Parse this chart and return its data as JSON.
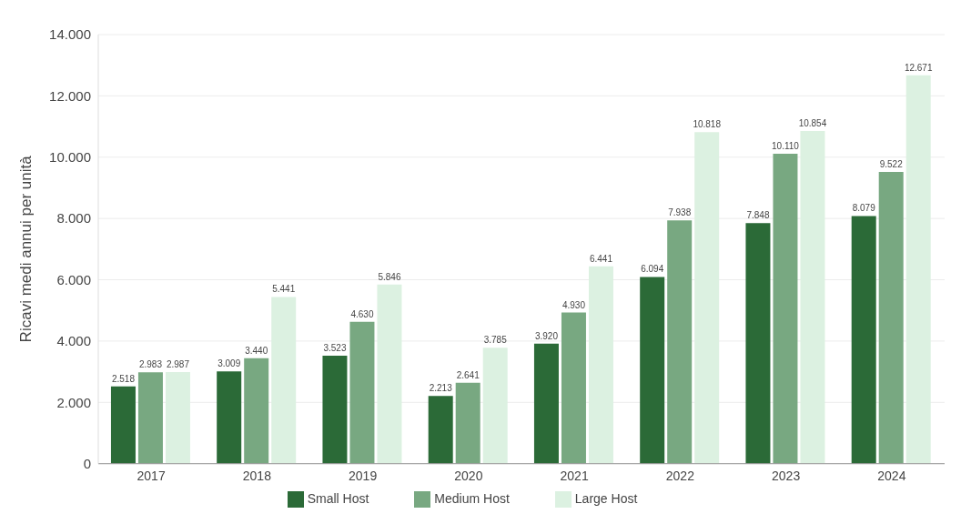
{
  "chart_data": {
    "type": "bar",
    "ylabel": "Ricavi medi annui per unità",
    "categories": [
      "2017",
      "2018",
      "2019",
      "2020",
      "2021",
      "2022",
      "2023",
      "2024"
    ],
    "series": [
      {
        "name": "Small Host",
        "color": "#2b6a37",
        "values": [
          2518,
          3009,
          3523,
          2213,
          3920,
          6094,
          7848,
          8079
        ],
        "value_labels": [
          "2.518",
          "3.009",
          "3.523",
          "2.213",
          "3.920",
          "6.094",
          "7.848",
          "8.079"
        ]
      },
      {
        "name": "Medium Host",
        "color": "#78a881",
        "values": [
          2983,
          3440,
          4630,
          2641,
          4930,
          7938,
          10110,
          9522
        ],
        "value_labels": [
          "2.983",
          "3.440",
          "4.630",
          "2.641",
          "4.930",
          "7.938",
          "10.110",
          "9.522"
        ]
      },
      {
        "name": "Large Host",
        "color": "#dcf1e1",
        "values": [
          2987,
          5441,
          5846,
          3785,
          6441,
          10818,
          10854,
          12671
        ],
        "value_labels": [
          "2.987",
          "5.441",
          "5.846",
          "3.785",
          "6.441",
          "10.818",
          "10.854",
          "12.671"
        ]
      }
    ],
    "ylim": [
      0,
      14000
    ],
    "yticks": [
      0,
      {
        "value": 2000,
        "label": "2.000"
      },
      {
        "value": 4000,
        "label": "4.000"
      },
      {
        "value": 6000,
        "label": "6.000"
      },
      {
        "value": 8000,
        "label": "8.000"
      },
      {
        "value": 10000,
        "label": "10.000"
      },
      {
        "value": 12000,
        "label": "12.000"
      },
      {
        "value": 14000,
        "label": "14.000"
      }
    ],
    "grid": "y",
    "legend": "bottom"
  }
}
